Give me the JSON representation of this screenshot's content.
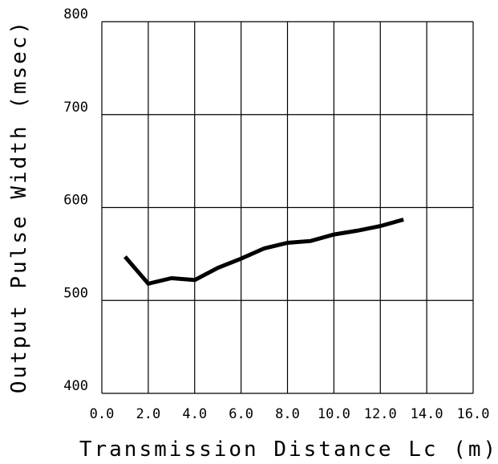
{
  "chart_data": {
    "type": "line",
    "title": "",
    "xlabel": "Transmission Distance Lc (m)",
    "ylabel": "Output Pulse Width (msec)",
    "xlim": [
      0,
      16
    ],
    "ylim": [
      400,
      800
    ],
    "x_ticks": [
      "0.0",
      "2.0",
      "4.0",
      "6.0",
      "8.0",
      "10.0",
      "12.0",
      "14.0",
      "16.0"
    ],
    "y_ticks": [
      "400",
      "500",
      "600",
      "700",
      "800"
    ],
    "grid": true,
    "legend": "none",
    "series": [
      {
        "x": [
          1,
          2,
          3,
          4,
          5,
          6,
          7,
          8,
          9,
          10,
          11,
          12,
          13
        ],
        "y": [
          547,
          518,
          524,
          522,
          535,
          545,
          556,
          562,
          564,
          571,
          575,
          580,
          587
        ]
      }
    ]
  }
}
